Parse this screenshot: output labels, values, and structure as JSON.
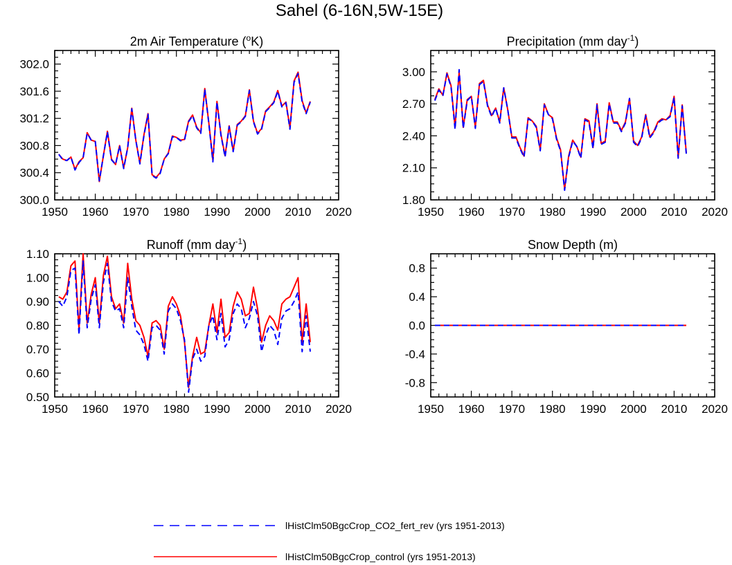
{
  "page_title": "Sahel (6-16N,5W-15E)",
  "colors": {
    "control": "#ff0000",
    "co2": "#0000ff"
  },
  "legend": {
    "placement": "bottom",
    "entries": [
      {
        "label": "lHistClm50BgcCrop_CO2_fert_rev (yrs 1951-2013)",
        "style": "dashed",
        "color": "#0000ff"
      },
      {
        "label": "lHistClm50BgcCrop_control (yrs 1951-2013)",
        "style": "solid",
        "color": "#ff0000"
      }
    ]
  },
  "chart_data": [
    {
      "type": "line",
      "title": "2m Air Temperature (°K)",
      "title_main": "2m Air Temperature (",
      "title_sup": "o",
      "title_end": "K)",
      "xlabel": "",
      "ylabel": "",
      "xlim": [
        1950,
        2020
      ],
      "ylim": [
        300.0,
        302.2
      ],
      "xticks": [
        1950,
        1960,
        1970,
        1980,
        1990,
        2000,
        2010,
        2020
      ],
      "yticks": [
        300.0,
        300.4,
        300.8,
        301.2,
        301.6,
        302.0
      ],
      "ytick_labels": [
        "300.0",
        "300.4",
        "300.8",
        "301.2",
        "301.6",
        "302.0"
      ],
      "x": [
        1951,
        1952,
        1953,
        1954,
        1955,
        1956,
        1957,
        1958,
        1959,
        1960,
        1961,
        1962,
        1963,
        1964,
        1965,
        1966,
        1967,
        1968,
        1969,
        1970,
        1971,
        1972,
        1973,
        1974,
        1975,
        1976,
        1977,
        1978,
        1979,
        1980,
        1981,
        1982,
        1983,
        1984,
        1985,
        1986,
        1987,
        1988,
        1989,
        1990,
        1991,
        1992,
        1993,
        1994,
        1995,
        1996,
        1997,
        1998,
        1999,
        2000,
        2001,
        2002,
        2003,
        2004,
        2005,
        2006,
        2007,
        2008,
        2009,
        2010,
        2011,
        2012,
        2013
      ],
      "series": [
        {
          "key": "co2",
          "values": [
            300.67,
            300.59,
            300.58,
            300.63,
            300.44,
            300.55,
            300.62,
            300.98,
            300.88,
            300.86,
            300.28,
            300.65,
            301.0,
            300.59,
            300.52,
            300.8,
            300.46,
            300.77,
            301.34,
            300.88,
            300.53,
            300.95,
            301.26,
            300.36,
            300.32,
            300.39,
            300.6,
            300.68,
            300.93,
            300.92,
            300.87,
            300.88,
            301.15,
            301.24,
            301.06,
            300.98,
            301.63,
            301.12,
            300.56,
            301.44,
            300.95,
            300.63,
            301.08,
            300.71,
            301.1,
            301.15,
            301.23,
            301.61,
            301.15,
            300.97,
            301.04,
            301.3,
            301.36,
            301.43,
            301.6,
            301.37,
            301.43,
            301.04,
            301.73,
            301.86,
            301.44,
            301.27,
            301.44
          ]
        },
        {
          "key": "control",
          "values": [
            300.67,
            300.6,
            300.58,
            300.63,
            300.45,
            300.56,
            300.62,
            300.99,
            300.88,
            300.86,
            300.27,
            300.65,
            301.01,
            300.6,
            300.52,
            300.8,
            300.47,
            300.77,
            301.35,
            300.88,
            300.54,
            300.96,
            301.27,
            300.37,
            300.33,
            300.4,
            300.6,
            300.69,
            300.94,
            300.92,
            300.88,
            300.89,
            301.16,
            301.25,
            301.07,
            300.99,
            301.64,
            301.13,
            300.58,
            301.45,
            300.96,
            300.65,
            301.09,
            300.72,
            301.11,
            301.16,
            301.24,
            301.62,
            301.16,
            300.98,
            301.05,
            301.31,
            301.37,
            301.44,
            301.61,
            301.38,
            301.44,
            301.06,
            301.75,
            301.88,
            301.46,
            301.28,
            301.45
          ]
        }
      ]
    },
    {
      "type": "line",
      "title": "Precipitation (mm day-1)",
      "title_main": "Precipitation (mm day",
      "title_sup": "-1",
      "title_end": ")",
      "xlabel": "",
      "ylabel": "",
      "xlim": [
        1950,
        2020
      ],
      "ylim": [
        1.8,
        3.2
      ],
      "xticks": [
        1950,
        1960,
        1970,
        1980,
        1990,
        2000,
        2010,
        2020
      ],
      "yticks": [
        1.8,
        2.1,
        2.4,
        2.7,
        3.0
      ],
      "ytick_labels": [
        "1.80",
        "2.10",
        "2.40",
        "2.70",
        "3.00"
      ],
      "x": [
        1951,
        1952,
        1953,
        1954,
        1955,
        1956,
        1957,
        1958,
        1959,
        1960,
        1961,
        1962,
        1963,
        1964,
        1965,
        1966,
        1967,
        1968,
        1969,
        1970,
        1971,
        1972,
        1973,
        1974,
        1975,
        1976,
        1977,
        1978,
        1979,
        1980,
        1981,
        1982,
        1983,
        1984,
        1985,
        1986,
        1987,
        1988,
        1989,
        1990,
        1991,
        1992,
        1993,
        1994,
        1995,
        1996,
        1997,
        1998,
        1999,
        2000,
        2001,
        2002,
        2003,
        2004,
        2005,
        2006,
        2007,
        2008,
        2009,
        2010,
        2011,
        2012,
        2013
      ],
      "series": [
        {
          "key": "co2",
          "values": [
            2.73,
            2.83,
            2.78,
            2.98,
            2.86,
            2.46,
            3.02,
            2.47,
            2.73,
            2.77,
            2.47,
            2.88,
            2.91,
            2.68,
            2.58,
            2.66,
            2.52,
            2.85,
            2.64,
            2.38,
            2.38,
            2.28,
            2.2,
            2.56,
            2.54,
            2.48,
            2.26,
            2.69,
            2.6,
            2.56,
            2.37,
            2.26,
            1.89,
            2.2,
            2.35,
            2.3,
            2.19,
            2.55,
            2.53,
            2.28,
            2.69,
            2.32,
            2.34,
            2.7,
            2.52,
            2.52,
            2.44,
            2.52,
            2.75,
            2.34,
            2.3,
            2.38,
            2.59,
            2.38,
            2.43,
            2.52,
            2.55,
            2.55,
            2.58,
            2.76,
            2.19,
            2.68,
            2.23
          ]
        },
        {
          "key": "control",
          "values": [
            2.74,
            2.84,
            2.78,
            2.99,
            2.87,
            2.48,
            3.0,
            2.48,
            2.74,
            2.77,
            2.48,
            2.89,
            2.92,
            2.69,
            2.59,
            2.66,
            2.53,
            2.85,
            2.64,
            2.39,
            2.39,
            2.29,
            2.21,
            2.57,
            2.54,
            2.49,
            2.27,
            2.7,
            2.6,
            2.57,
            2.38,
            2.27,
            1.9,
            2.21,
            2.36,
            2.3,
            2.2,
            2.56,
            2.54,
            2.29,
            2.7,
            2.33,
            2.35,
            2.71,
            2.53,
            2.53,
            2.45,
            2.53,
            2.75,
            2.35,
            2.31,
            2.39,
            2.6,
            2.39,
            2.44,
            2.53,
            2.56,
            2.55,
            2.59,
            2.77,
            2.2,
            2.69,
            2.24
          ]
        }
      ]
    },
    {
      "type": "line",
      "title": "Runoff (mm day-1)",
      "title_main": "Runoff (mm day",
      "title_sup": "-1",
      "title_end": ")",
      "xlabel": "",
      "ylabel": "",
      "xlim": [
        1950,
        2020
      ],
      "ylim": [
        0.5,
        1.1
      ],
      "xticks": [
        1950,
        1960,
        1970,
        1980,
        1990,
        2000,
        2010,
        2020
      ],
      "yticks": [
        0.5,
        0.6,
        0.7,
        0.8,
        0.9,
        1.0,
        1.1
      ],
      "ytick_labels": [
        "0.50",
        "0.60",
        "0.70",
        "0.80",
        "0.90",
        "1.00",
        "1.10"
      ],
      "x": [
        1951,
        1952,
        1953,
        1954,
        1955,
        1956,
        1957,
        1958,
        1959,
        1960,
        1961,
        1962,
        1963,
        1964,
        1965,
        1966,
        1967,
        1968,
        1969,
        1970,
        1971,
        1972,
        1973,
        1974,
        1975,
        1976,
        1977,
        1978,
        1979,
        1980,
        1981,
        1982,
        1983,
        1984,
        1985,
        1986,
        1987,
        1988,
        1989,
        1990,
        1991,
        1992,
        1993,
        1994,
        1995,
        1996,
        1997,
        1998,
        1999,
        2000,
        2001,
        2002,
        2003,
        2004,
        2005,
        2006,
        2007,
        2008,
        2009,
        2010,
        2011,
        2012,
        2013
      ],
      "series": [
        {
          "key": "co2",
          "values": [
            0.9,
            0.88,
            0.92,
            1.03,
            1.04,
            0.76,
            1.07,
            0.79,
            0.91,
            0.97,
            0.79,
            0.98,
            1.06,
            0.9,
            0.86,
            0.87,
            0.79,
            1.0,
            0.88,
            0.78,
            0.76,
            0.72,
            0.65,
            0.79,
            0.8,
            0.78,
            0.68,
            0.86,
            0.89,
            0.87,
            0.82,
            0.74,
            0.52,
            0.66,
            0.7,
            0.65,
            0.67,
            0.8,
            0.84,
            0.74,
            0.85,
            0.71,
            0.74,
            0.85,
            0.89,
            0.87,
            0.79,
            0.83,
            0.9,
            0.84,
            0.69,
            0.76,
            0.8,
            0.78,
            0.72,
            0.83,
            0.86,
            0.87,
            0.9,
            0.94,
            0.69,
            0.84,
            0.69
          ]
        },
        {
          "key": "control",
          "values": [
            0.92,
            0.91,
            0.94,
            1.05,
            1.07,
            0.78,
            1.1,
            0.81,
            0.93,
            1.0,
            0.81,
            1.01,
            1.09,
            0.92,
            0.87,
            0.89,
            0.81,
            1.06,
            0.91,
            0.82,
            0.8,
            0.75,
            0.67,
            0.81,
            0.82,
            0.8,
            0.7,
            0.88,
            0.92,
            0.89,
            0.84,
            0.73,
            0.54,
            0.67,
            0.75,
            0.68,
            0.69,
            0.8,
            0.89,
            0.77,
            0.91,
            0.75,
            0.77,
            0.88,
            0.94,
            0.91,
            0.84,
            0.85,
            0.96,
            0.87,
            0.73,
            0.8,
            0.84,
            0.82,
            0.78,
            0.89,
            0.91,
            0.92,
            0.96,
            1.0,
            0.73,
            0.89,
            0.73
          ]
        }
      ]
    },
    {
      "type": "line",
      "title": "Snow Depth (m)",
      "title_main": "Snow Depth (m)",
      "title_sup": "",
      "title_end": "",
      "xlabel": "",
      "ylabel": "",
      "xlim": [
        1950,
        2020
      ],
      "ylim": [
        -1.0,
        1.0
      ],
      "xticks": [
        1950,
        1960,
        1970,
        1980,
        1990,
        2000,
        2010,
        2020
      ],
      "yticks": [
        -0.8,
        -0.4,
        0.0,
        0.4,
        0.8
      ],
      "ytick_labels": [
        "-0.8",
        "-0.4",
        "0.0",
        "0.4",
        "0.8"
      ],
      "x": [
        1951,
        2013
      ],
      "series": [
        {
          "key": "control",
          "values": [
            0,
            0
          ]
        },
        {
          "key": "co2",
          "values": [
            0,
            0
          ]
        }
      ]
    }
  ]
}
